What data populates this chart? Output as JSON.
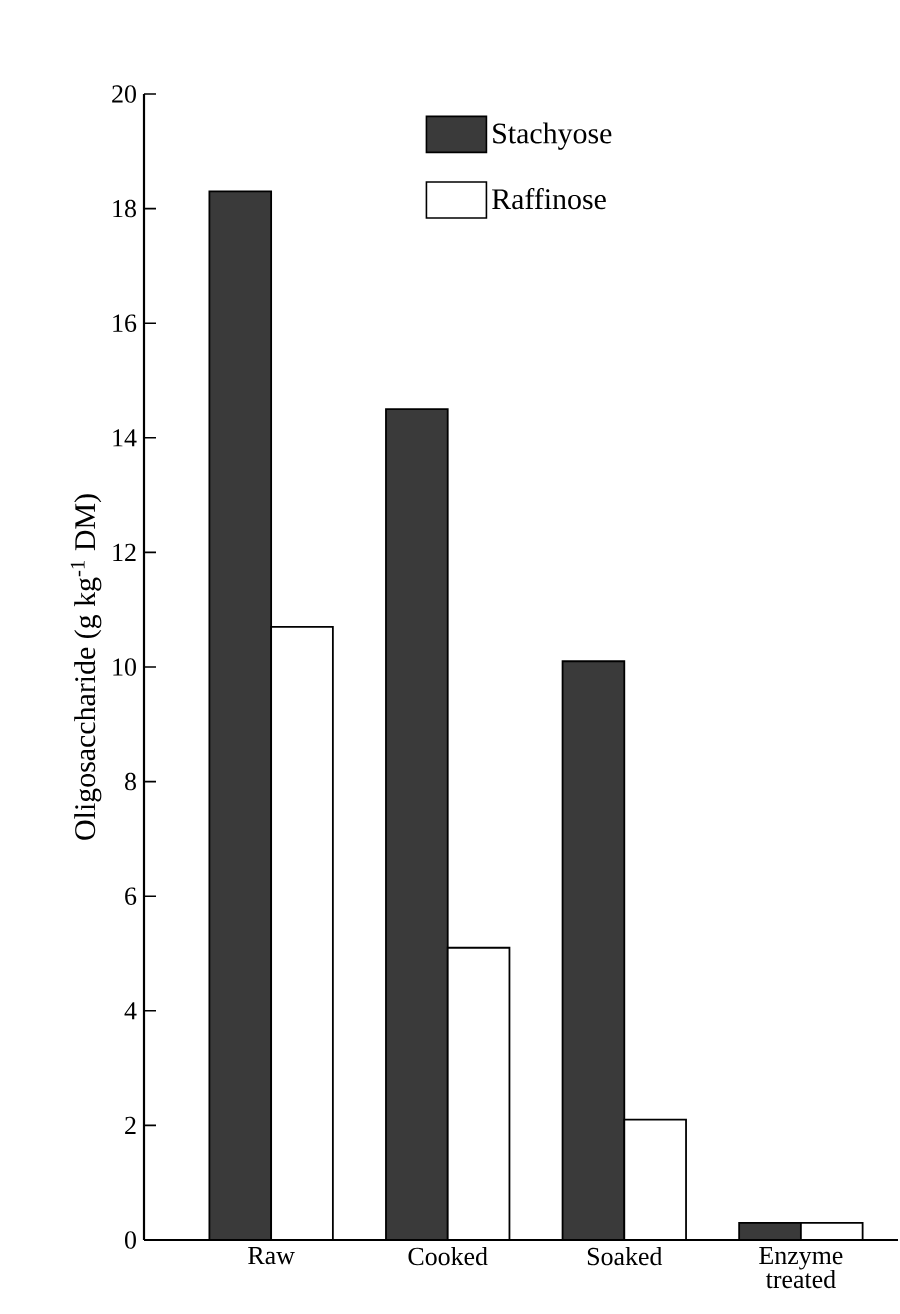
{
  "chart_data": {
    "type": "bar",
    "ylabel": "Oligosaccharide (g kg$^{-1}$ DM)",
    "categories": [
      "Raw",
      "Cooked",
      "Soaked",
      "Enzyme treated"
    ],
    "series": [
      {
        "name": "Stachyose",
        "color": "#3a3a3a",
        "values": [
          18.3,
          14.5,
          10.1,
          0.3
        ]
      },
      {
        "name": "Raffinose",
        "color": "#ffffff",
        "values": [
          10.7,
          5.1,
          2.1,
          0.3
        ]
      }
    ],
    "ylim": [
      0,
      20
    ],
    "yticks": [
      0,
      2,
      4,
      6,
      8,
      10,
      12,
      14,
      16,
      18,
      20
    ],
    "legend": "top",
    "grid": false
  }
}
